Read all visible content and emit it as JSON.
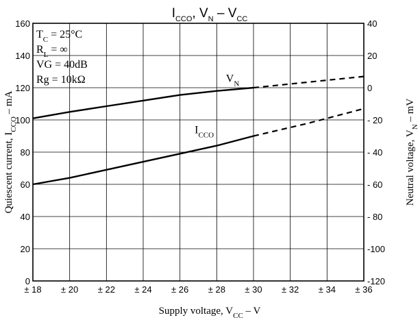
{
  "chart_data": {
    "type": "line",
    "title": {
      "parts": [
        {
          "text": "I"
        },
        {
          "text": "CCO",
          "sub": true
        },
        {
          "text": ", V"
        },
        {
          "text": "N",
          "sub": true
        },
        {
          "text": "   –   V"
        },
        {
          "text": "CC",
          "sub": true
        }
      ]
    },
    "xlabel": {
      "parts": [
        {
          "text": "Supply voltage, V"
        },
        {
          "text": "CC",
          "sub": true
        },
        {
          "text": " – V"
        }
      ]
    },
    "ylabel_left": {
      "parts": [
        {
          "text": "Quiescent current, I"
        },
        {
          "text": "CCO",
          "sub": true
        },
        {
          "text": " – mA"
        }
      ]
    },
    "ylabel_right": {
      "parts": [
        {
          "text": "Neutral voltage, V"
        },
        {
          "text": "N",
          "sub": true
        },
        {
          "text": " – mV"
        }
      ]
    },
    "conditions": [
      {
        "parts": [
          {
            "text": "T"
          },
          {
            "text": "C",
            "sub": true
          },
          {
            "text": " = 25°C"
          }
        ]
      },
      {
        "parts": [
          {
            "text": "R"
          },
          {
            "text": "L",
            "sub": true
          },
          {
            "text": " = ∞"
          }
        ]
      },
      {
        "parts": [
          {
            "text": "VG = 40dB"
          }
        ]
      },
      {
        "parts": [
          {
            "text": "Rg = 10kΩ"
          }
        ]
      }
    ],
    "xlim": [
      18,
      36
    ],
    "ylim_left": [
      0,
      160
    ],
    "ylim_right": [
      -120,
      40
    ],
    "x_ticks": [
      {
        "value": 18,
        "label": "± 18"
      },
      {
        "value": 20,
        "label": "± 20"
      },
      {
        "value": 22,
        "label": "± 22"
      },
      {
        "value": 24,
        "label": "± 24"
      },
      {
        "value": 26,
        "label": "± 26"
      },
      {
        "value": 28,
        "label": "± 28"
      },
      {
        "value": 30,
        "label": "± 30"
      },
      {
        "value": 32,
        "label": "± 32"
      },
      {
        "value": 34,
        "label": "± 34"
      },
      {
        "value": 36,
        "label": "± 36"
      }
    ],
    "y_left_ticks": [
      0,
      20,
      40,
      60,
      80,
      100,
      120,
      140,
      160
    ],
    "y_right_ticks": [
      {
        "value": 40,
        "label": "40"
      },
      {
        "value": 20,
        "label": "20"
      },
      {
        "value": 0,
        "label": "0"
      },
      {
        "value": -20,
        "label": "- 20"
      },
      {
        "value": -40,
        "label": "- 40"
      },
      {
        "value": -60,
        "label": "- 60"
      },
      {
        "value": -80,
        "label": "- 80"
      },
      {
        "value": -100,
        "label": "-100"
      },
      {
        "value": -120,
        "label": "-120"
      }
    ],
    "grid": true,
    "series": [
      {
        "name": {
          "parts": [
            {
              "text": "V"
            },
            {
              "text": "N",
              "sub": true
            }
          ]
        },
        "axis": "right",
        "label_at": {
          "x": 28.5,
          "y": 2
        },
        "solid": {
          "x": [
            18,
            20,
            22,
            24,
            26,
            28,
            30
          ],
          "y": [
            -19,
            -15,
            -11.5,
            -8,
            -4.5,
            -2,
            0
          ]
        },
        "dashed": {
          "x": [
            30,
            33,
            36
          ],
          "y": [
            0,
            3.5,
            7
          ]
        }
      },
      {
        "name": {
          "parts": [
            {
              "text": "I"
            },
            {
              "text": "CCO",
              "sub": true
            }
          ]
        },
        "axis": "left",
        "label_at": {
          "x": 26.8,
          "y": 90
        },
        "solid": {
          "x": [
            18,
            20,
            22,
            24,
            26,
            28,
            30
          ],
          "y": [
            60,
            64,
            69,
            74,
            79,
            84,
            90
          ]
        },
        "dashed": {
          "x": [
            30,
            33,
            36
          ],
          "y": [
            90,
            98,
            107
          ]
        }
      }
    ]
  }
}
